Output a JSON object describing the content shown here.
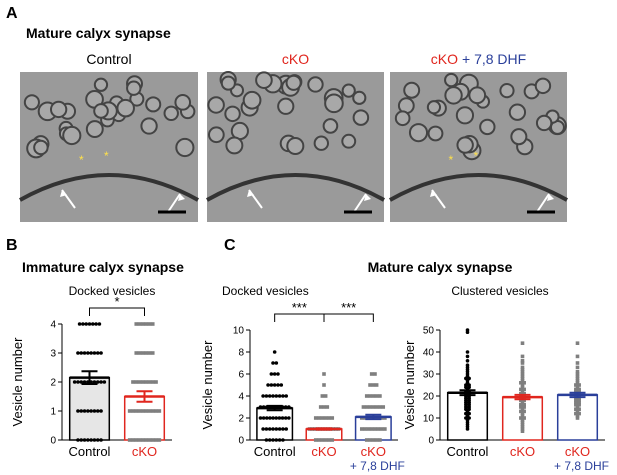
{
  "panel_labels": [
    "A",
    "B",
    "C"
  ],
  "section_a_title": "Mature calyx synapse",
  "image_labels": [
    {
      "text": "Control",
      "color": "#000000"
    },
    {
      "text": "cKO",
      "color": "#e0261e"
    },
    {
      "text": "cKO",
      "color": "#e0261e",
      "extra": "+ 7,8 DHF",
      "extra_color": "#2a3f9a"
    }
  ],
  "image_marker": "*",
  "section_b_title": "Immature calyx synapse",
  "section_c_title": "Mature calyx synapse",
  "chart_data": [
    {
      "type": "bar",
      "title": "Docked vesicles",
      "ylabel": "Vesicle number",
      "categories": [
        "Control",
        "cKO"
      ],
      "category_colors": [
        "#000000",
        "#e0261e"
      ],
      "category_sublabels": [
        null,
        null
      ],
      "values": [
        2.15,
        1.5
      ],
      "errors": [
        0.22,
        0.18
      ],
      "bar_fill": [
        "#e6e6e6",
        "#ffffff"
      ],
      "bar_stroke": [
        "#000000",
        "#e0261e"
      ],
      "markers": [
        "circle",
        "square"
      ],
      "marker_colors": [
        "#000000",
        "#7f7f7f"
      ],
      "points": [
        [
          0,
          0,
          0,
          0,
          0,
          0,
          0,
          0,
          1,
          1,
          1,
          1,
          1,
          1,
          1,
          1,
          2,
          2,
          2,
          2,
          2,
          2,
          2,
          2,
          2,
          2,
          3,
          3,
          3,
          3,
          3,
          3,
          3,
          3,
          4,
          4,
          4,
          4,
          4,
          4,
          4
        ],
        [
          0,
          0,
          0,
          0,
          0,
          0,
          0,
          0,
          0,
          0,
          1,
          1,
          1,
          1,
          1,
          1,
          1,
          1,
          1,
          1,
          2,
          2,
          2,
          2,
          2,
          2,
          2,
          2,
          3,
          3,
          3,
          3,
          3,
          3,
          4,
          4,
          4,
          4,
          4,
          4
        ]
      ],
      "comparisons": [
        {
          "pair": [
            0,
            1
          ],
          "label": "*"
        }
      ],
      "ylim": [
        0,
        4
      ],
      "yticks": [
        0,
        1,
        2,
        3,
        4
      ]
    },
    {
      "type": "bar",
      "title": "Docked vesicles",
      "ylabel": "Vesicle number",
      "categories": [
        "Control",
        "cKO",
        "cKO"
      ],
      "category_colors": [
        "#000000",
        "#e0261e",
        "#e0261e"
      ],
      "category_sublabels": [
        null,
        null,
        "+ 7,8 DHF"
      ],
      "values": [
        2.9,
        1.0,
        2.1
      ],
      "errors": [
        0.2,
        0.06,
        0.2
      ],
      "bar_fill": [
        "#ffffff",
        "#ffffff",
        "#ffffff"
      ],
      "bar_stroke": [
        "#000000",
        "#e0261e",
        "#2a3f9a"
      ],
      "markers": [
        "circle",
        "square",
        "square"
      ],
      "marker_colors": [
        "#000000",
        "#7f7f7f",
        "#7f7f7f"
      ],
      "points": [
        [
          0,
          0,
          0,
          0,
          0,
          0,
          1,
          1,
          1,
          1,
          1,
          1,
          1,
          1,
          2,
          2,
          2,
          2,
          2,
          2,
          2,
          2,
          2,
          2,
          3,
          3,
          3,
          3,
          3,
          3,
          3,
          3,
          3,
          3,
          4,
          4,
          4,
          4,
          4,
          4,
          4,
          4,
          5,
          5,
          5,
          5,
          5,
          6,
          6,
          6,
          7,
          7,
          8
        ],
        [
          0,
          0,
          0,
          0,
          0,
          0,
          1,
          1,
          1,
          1,
          1,
          1,
          1,
          1,
          1,
          1,
          1,
          1,
          2,
          2,
          2,
          2,
          2,
          2,
          3,
          3,
          3,
          4,
          4,
          5,
          6
        ],
        [
          0,
          0,
          0,
          0,
          0,
          1,
          1,
          1,
          1,
          1,
          1,
          1,
          1,
          2,
          2,
          2,
          2,
          2,
          2,
          2,
          2,
          3,
          3,
          3,
          3,
          3,
          3,
          3,
          4,
          4,
          4,
          4,
          4,
          5,
          5,
          5,
          6,
          6
        ]
      ],
      "comparisons": [
        {
          "pair": [
            0,
            1
          ],
          "label": "***"
        },
        {
          "pair": [
            1,
            2
          ],
          "label": "***"
        }
      ],
      "ylim": [
        0,
        10
      ],
      "yticks": [
        0,
        2,
        4,
        6,
        8,
        10
      ]
    },
    {
      "type": "bar",
      "title": "Clustered vesicles",
      "categories": [
        "Control",
        "cKO",
        "cKO"
      ],
      "category_colors": [
        "#000000",
        "#e0261e",
        "#e0261e"
      ],
      "category_sublabels": [
        null,
        null,
        "+ 7,8 DHF"
      ],
      "values": [
        21.5,
        19.5,
        20.5
      ],
      "errors": [
        1.1,
        1.0,
        1.0
      ],
      "bar_fill": [
        "#ffffff",
        "#ffffff",
        "#ffffff"
      ],
      "bar_stroke": [
        "#000000",
        "#e0261e",
        "#2a3f9a"
      ],
      "markers": [
        "circle",
        "square",
        "square"
      ],
      "marker_colors": [
        "#000000",
        "#7f7f7f",
        "#7f7f7f"
      ],
      "points": [
        [
          50,
          49,
          40,
          38,
          36,
          34,
          33,
          32,
          31,
          30,
          29,
          28,
          28,
          27,
          26,
          25,
          25,
          24,
          24,
          23,
          22,
          22,
          21,
          21,
          20,
          20,
          19,
          19,
          18,
          18,
          17,
          17,
          16,
          16,
          15,
          15,
          14,
          14,
          13,
          12,
          12,
          11,
          10,
          10,
          9,
          8,
          7,
          6,
          5
        ],
        [
          44,
          38,
          36,
          35,
          33,
          32,
          31,
          30,
          29,
          28,
          27,
          26,
          26,
          25,
          24,
          23,
          23,
          22,
          21,
          21,
          20,
          20,
          19,
          19,
          18,
          18,
          17,
          16,
          16,
          15,
          15,
          14,
          13,
          13,
          12,
          11,
          10,
          10,
          9,
          8,
          7,
          6,
          5,
          4
        ],
        [
          44,
          38,
          35,
          33,
          31,
          30,
          29,
          28,
          27,
          26,
          25,
          25,
          24,
          23,
          23,
          22,
          22,
          21,
          21,
          20,
          20,
          19,
          19,
          18,
          18,
          17,
          17,
          16,
          16,
          15,
          14,
          14,
          13,
          12,
          12,
          11,
          10
        ]
      ],
      "comparisons": [],
      "ylim": [
        0,
        50
      ],
      "yticks": [
        0,
        10,
        20,
        30,
        40,
        50
      ]
    }
  ]
}
